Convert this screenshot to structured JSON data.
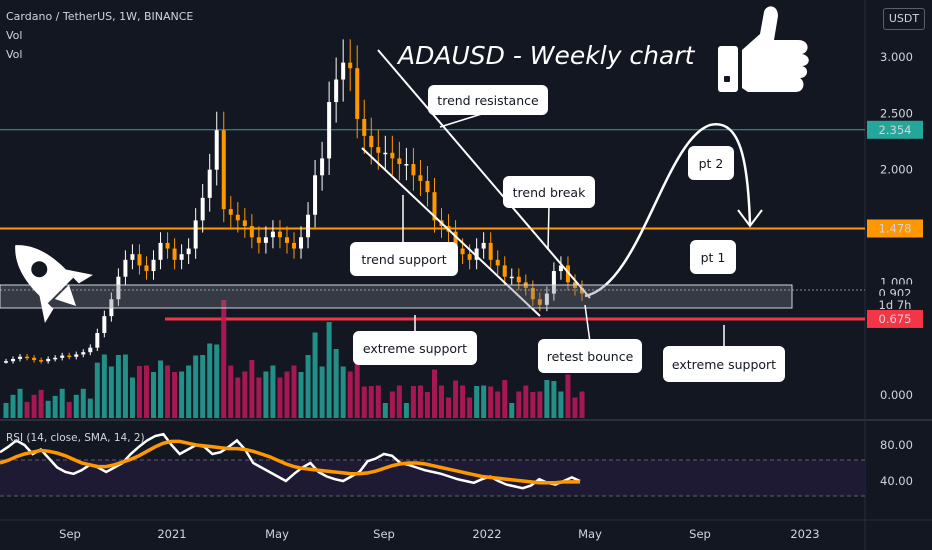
{
  "header": {
    "symbol_line": "Cardano / TetherUS, 1W, BINANCE",
    "vol1": "Vol",
    "vol2": "Vol",
    "currency": "USDT"
  },
  "chart_data": {
    "type": "candlestick",
    "title": "ADAUSD - Weekly  chart",
    "price_axis": {
      "ticks": [
        "3.000",
        "2.500",
        "2.000",
        "1.000",
        "0.000"
      ],
      "tick_values": [
        3.0,
        2.5,
        2.0,
        1.0,
        0.0
      ],
      "labels": [
        {
          "text": "2.354",
          "value": 2.354,
          "color": "#26a69a"
        },
        {
          "text": "1.478",
          "value": 1.478,
          "color": "#ff9800"
        },
        {
          "text": "0.902",
          "value": 0.902,
          "color": "#d1d4dc"
        },
        {
          "text": "1d 7h",
          "value": 0.8,
          "color": "#d1d4dc"
        },
        {
          "text": "0.675",
          "value": 0.675,
          "color": "#f23645"
        }
      ]
    },
    "time_axis": [
      "Sep",
      "2021",
      "May",
      "Sep",
      "2022",
      "May",
      "Sep",
      "2023"
    ],
    "horizontal_levels": [
      {
        "value": 2.354,
        "color": "#26a69a"
      },
      {
        "value": 1.478,
        "color": "#ff9800"
      },
      {
        "value": 0.675,
        "color": "#f23645"
      }
    ],
    "weekly_close_approx": [
      0.3,
      0.32,
      0.34,
      0.33,
      0.31,
      0.3,
      0.32,
      0.33,
      0.35,
      0.34,
      0.36,
      0.38,
      0.42,
      0.55,
      0.7,
      0.85,
      1.05,
      1.2,
      1.25,
      1.15,
      1.1,
      1.2,
      1.35,
      1.3,
      1.2,
      1.25,
      1.3,
      1.55,
      1.75,
      2.0,
      2.35,
      1.65,
      1.6,
      1.55,
      1.5,
      1.4,
      1.35,
      1.4,
      1.45,
      1.4,
      1.35,
      1.3,
      1.4,
      1.6,
      1.95,
      2.1,
      2.6,
      2.8,
      2.95,
      2.9,
      2.45,
      2.3,
      2.2,
      2.15,
      2.15,
      2.1,
      2.05,
      2.05,
      1.95,
      1.9,
      1.8,
      1.55,
      1.5,
      1.45,
      1.3,
      1.25,
      1.2,
      1.3,
      1.35,
      1.2,
      1.15,
      1.05,
      1.05,
      1.0,
      0.95,
      0.85,
      0.8,
      0.9,
      1.1,
      1.15,
      1.0,
      0.95,
      0.9
    ],
    "annotations": [
      "trend resistance",
      "trend break",
      "trend support",
      "extreme support",
      "retest bounce",
      "extreme support",
      "pt 2",
      "pt 1"
    ],
    "rsi": {
      "label": "RSI (14, close, SMA, 14, 2)",
      "ticks": [
        "80.00",
        "40.00"
      ],
      "tick_values": [
        80,
        40
      ],
      "rsi_values": [
        72,
        78,
        85,
        80,
        70,
        75,
        65,
        55,
        50,
        48,
        52,
        58,
        55,
        50,
        55,
        60,
        70,
        78,
        85,
        90,
        92,
        80,
        70,
        75,
        80,
        78,
        70,
        72,
        78,
        85,
        75,
        60,
        55,
        50,
        45,
        40,
        48,
        55,
        60,
        50,
        45,
        42,
        40,
        45,
        50,
        62,
        65,
        70,
        68,
        60,
        58,
        55,
        52,
        50,
        48,
        45,
        42,
        40,
        38,
        42,
        45,
        40,
        36,
        34,
        32,
        35,
        42,
        38,
        36,
        40,
        44,
        40
      ],
      "sma_values": [
        60,
        63,
        67,
        70,
        72,
        74,
        73,
        71,
        68,
        64,
        60,
        58,
        56,
        56,
        58,
        61,
        64,
        68,
        73,
        78,
        82,
        84,
        84,
        82,
        80,
        79,
        78,
        77,
        76,
        76,
        75,
        73,
        70,
        67,
        63,
        59,
        56,
        54,
        53,
        52,
        51,
        50,
        49,
        48,
        48,
        49,
        51,
        54,
        57,
        59,
        60,
        60,
        59,
        57,
        55,
        53,
        51,
        49,
        47,
        45,
        44,
        43,
        42,
        41,
        40,
        39,
        38,
        38,
        38,
        39,
        39,
        39
      ]
    }
  }
}
